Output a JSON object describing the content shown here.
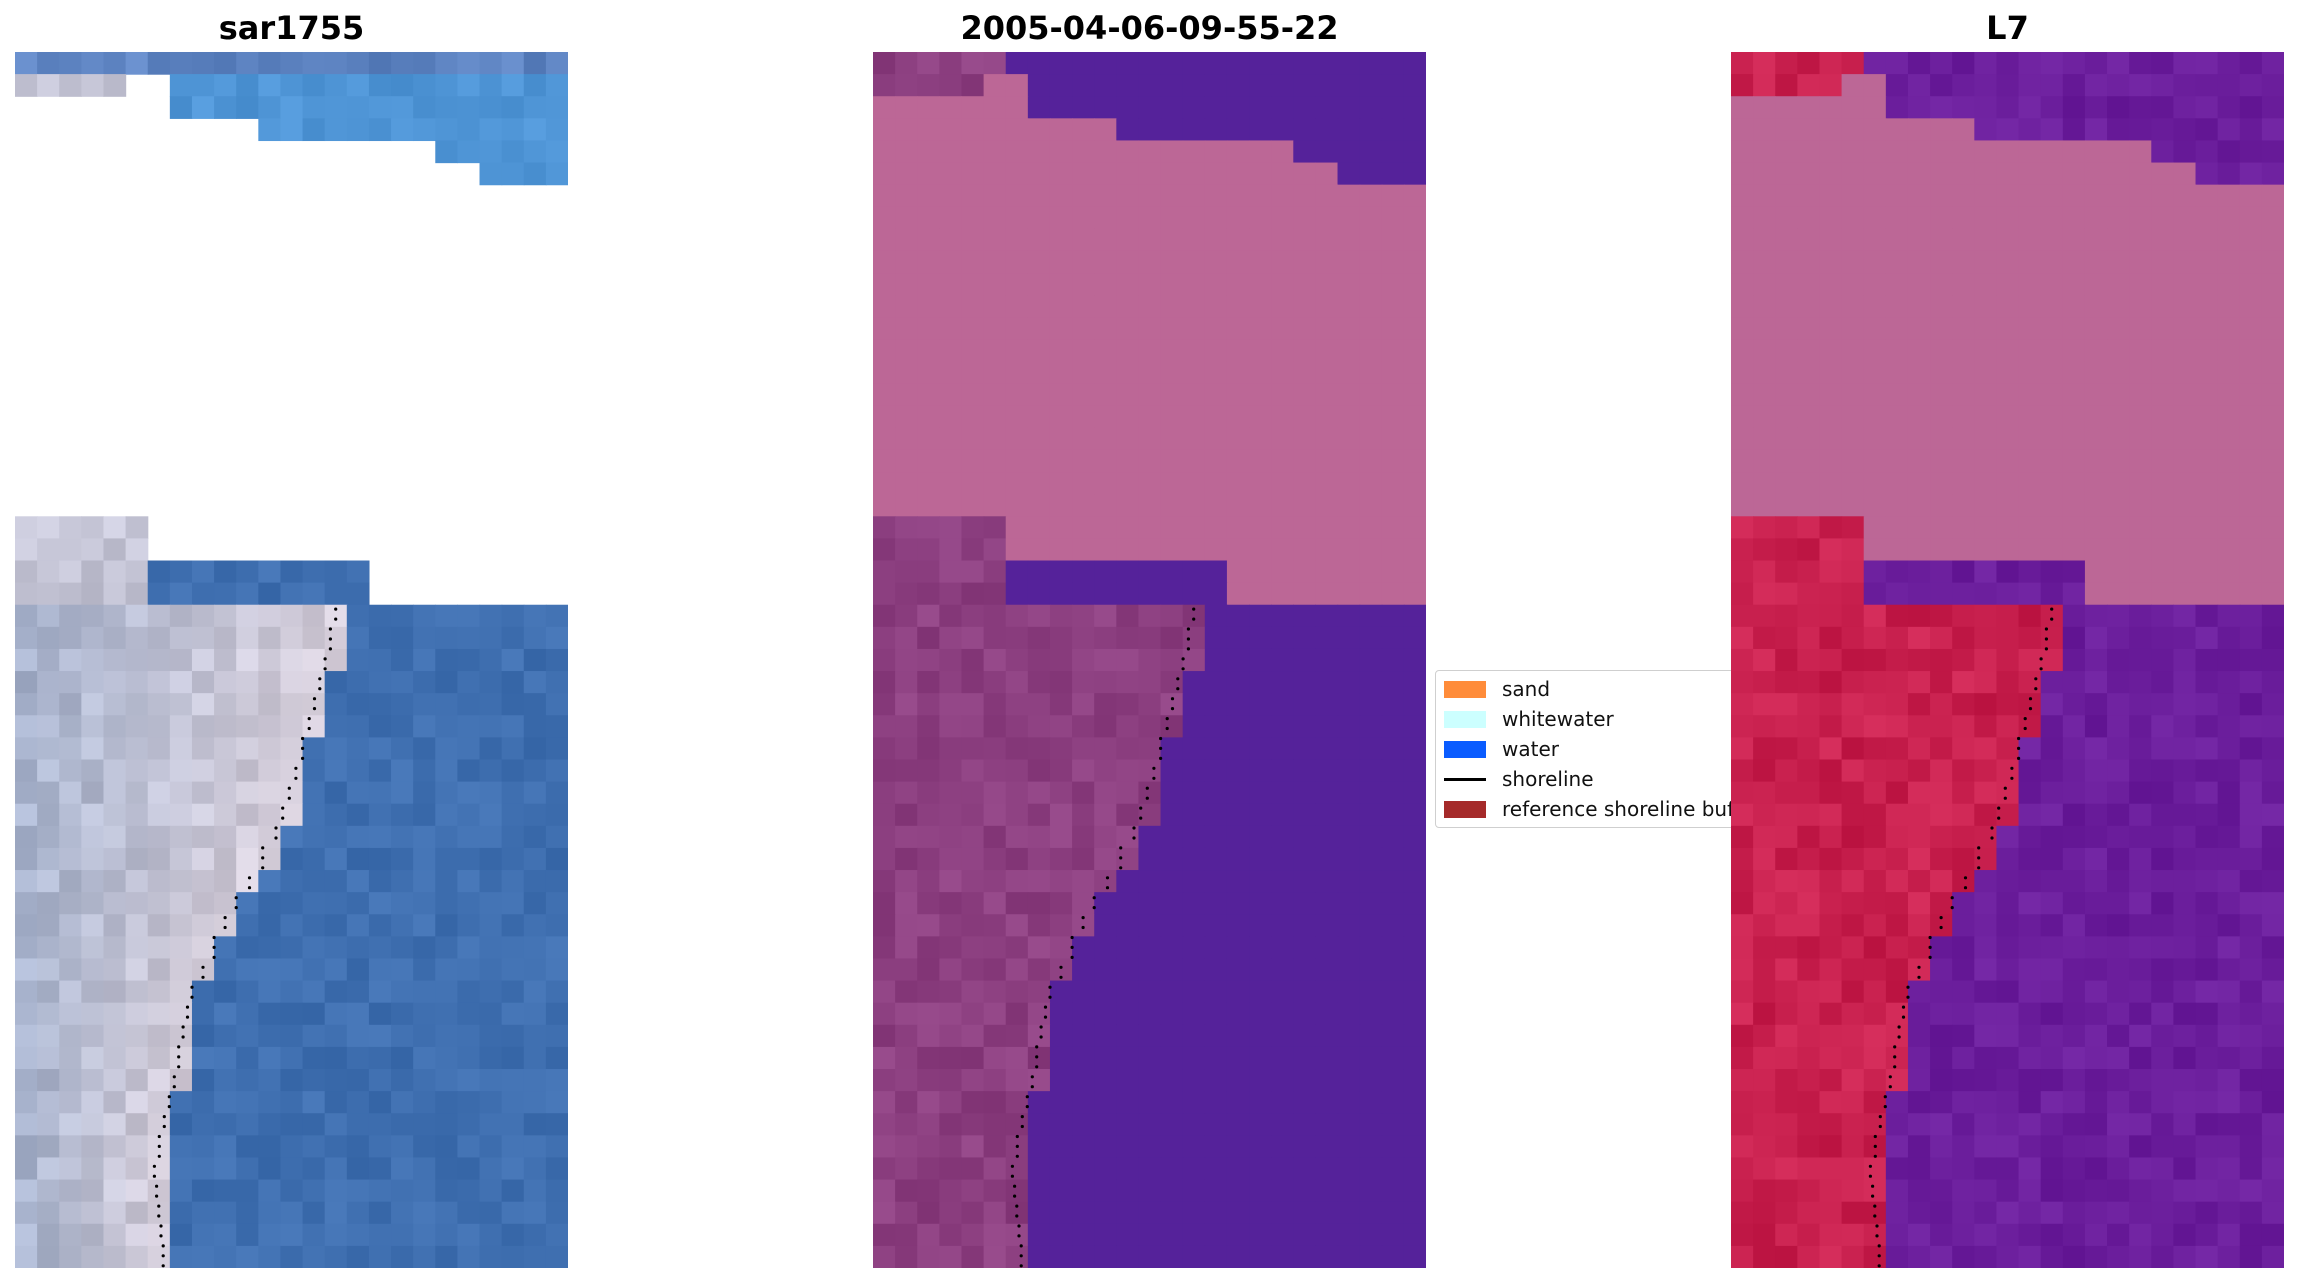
{
  "panels": [
    {
      "title": "sar1755",
      "kind": "rgb image"
    },
    {
      "title": "2005-04-06-09-55-22",
      "kind": "classified image"
    },
    {
      "title": "L7",
      "kind": "mndwi image"
    }
  ],
  "legend": {
    "items": [
      {
        "label": "sand",
        "color": "#ff8c3a",
        "icon": "patch-icon"
      },
      {
        "label": "whitewater",
        "color": "#ccffff",
        "icon": "patch-icon"
      },
      {
        "label": "water",
        "color": "#0a5cff",
        "icon": "patch-icon"
      },
      {
        "label": "shoreline",
        "color": "#000000",
        "icon": "line-icon"
      },
      {
        "label": "reference shoreline buffer",
        "color": "#a52a2a",
        "icon": "patch-icon"
      }
    ]
  },
  "colors": {
    "rgb_water": "#3f6fb0",
    "rgb_beach": "#d8d0dc",
    "classified_water": "#55229a",
    "classified_land": "#8c3f80",
    "classified_mask": "#bc6796",
    "mndwi_water": "#6b1e9c",
    "mndwi_land": "#c8204e",
    "mndwi_mask": "#bc6796",
    "shoreline": "#000000"
  }
}
